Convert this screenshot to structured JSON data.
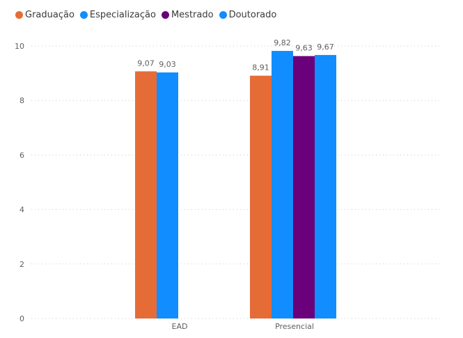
{
  "chart_data": {
    "type": "bar",
    "categories": [
      "EAD",
      "Presencial"
    ],
    "series": [
      {
        "name": "Graduação",
        "color": "#E66C37",
        "values": [
          9.07,
          8.91
        ],
        "labels": [
          "9,07",
          "8,91"
        ]
      },
      {
        "name": "Especialização",
        "color": "#118DFF",
        "values": [
          9.03,
          9.82
        ],
        "labels": [
          "9,03",
          "9,82"
        ]
      },
      {
        "name": "Mestrado",
        "color": "#6B007B",
        "values": [
          null,
          9.63
        ],
        "labels": [
          null,
          "9,63"
        ]
      },
      {
        "name": "Doutorado",
        "color": "#118DFF",
        "values": [
          null,
          9.67
        ],
        "labels": [
          null,
          "9,67"
        ]
      }
    ],
    "yticks": [
      0,
      2,
      4,
      6,
      8,
      10
    ],
    "ylim": [
      0,
      10
    ],
    "grid": true,
    "legend_position": "top-left"
  }
}
